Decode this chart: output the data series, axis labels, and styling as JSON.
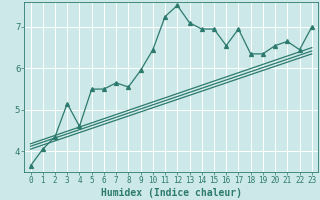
{
  "xlabel": "Humidex (Indice chaleur)",
  "background_color": "#cce8e8",
  "grid_color": "#ffffff",
  "line_color": "#2d7a6e",
  "xlim": [
    -0.5,
    23.5
  ],
  "ylim": [
    3.5,
    7.6
  ],
  "yticks": [
    4,
    5,
    6,
    7
  ],
  "xticks": [
    0,
    1,
    2,
    3,
    4,
    5,
    6,
    7,
    8,
    9,
    10,
    11,
    12,
    13,
    14,
    15,
    16,
    17,
    18,
    19,
    20,
    21,
    22,
    23
  ],
  "series1_x": [
    0,
    1,
    2,
    3,
    4,
    5,
    6,
    7,
    8,
    9,
    10,
    11,
    12,
    13,
    14,
    15,
    16,
    17,
    18,
    19,
    20,
    21,
    22,
    23
  ],
  "series1_y": [
    3.65,
    4.05,
    4.35,
    5.15,
    4.6,
    5.5,
    5.5,
    5.65,
    5.55,
    5.95,
    6.45,
    7.25,
    7.52,
    7.1,
    6.95,
    6.95,
    6.55,
    6.95,
    6.35,
    6.35,
    6.55,
    6.65,
    6.45,
    7.0
  ],
  "trend1_x": [
    0,
    23
  ],
  "trend1_y": [
    4.05,
    6.35
  ],
  "trend2_x": [
    0,
    23
  ],
  "trend2_y": [
    4.12,
    6.42
  ],
  "trend3_x": [
    0,
    23
  ],
  "trend3_y": [
    4.18,
    6.5
  ]
}
